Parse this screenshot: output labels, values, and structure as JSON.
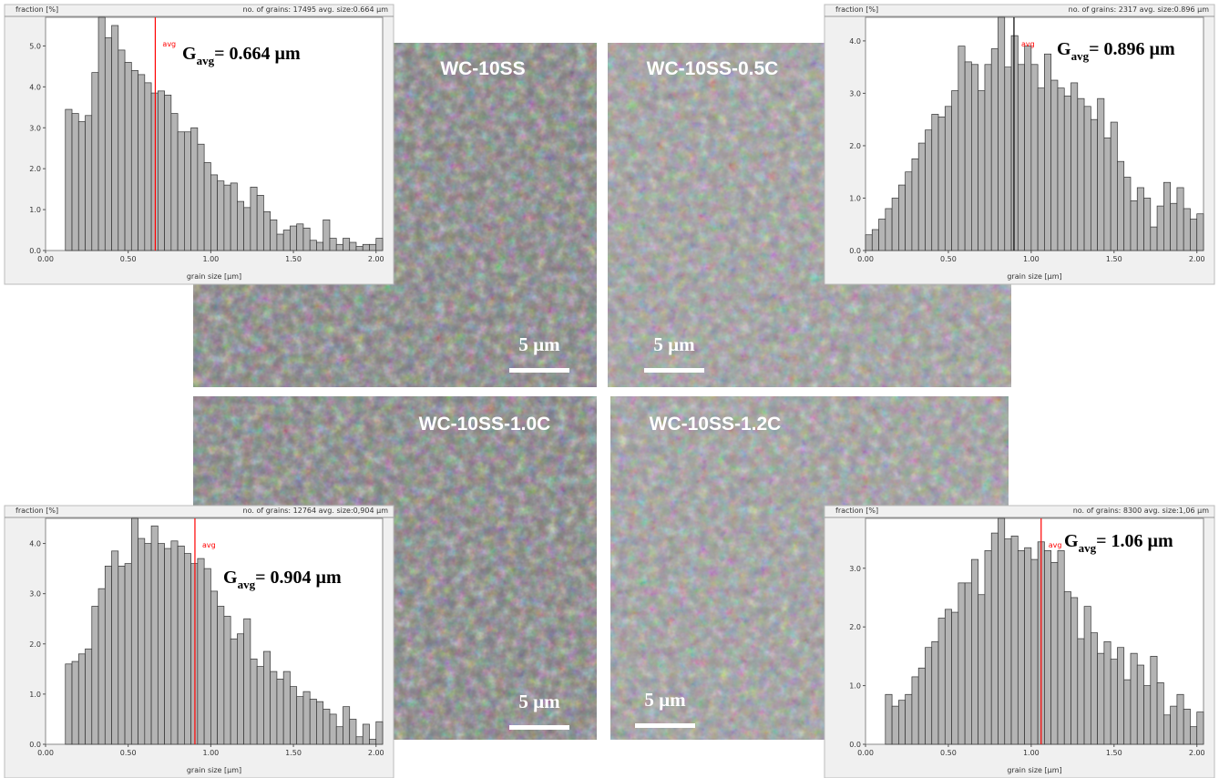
{
  "chart_data": [
    {
      "type": "histogram",
      "y_label": "fraction [%]",
      "info": "no. of grains: 17495  avg. size:0.664 µm",
      "x_label": "grain size [µm]",
      "color": "#b4b4b4",
      "avg_color": "#ff0000",
      "avg_label_color": "#ff0000",
      "avg_label": "avg",
      "avg_value": 0.664,
      "gavg_symbol": "G",
      "gavg_subscript": "avg",
      "gavg_text": "= 0.664 µm",
      "bins": [
        0.12,
        0.16,
        0.2,
        0.24,
        0.28,
        0.32,
        0.36,
        0.4,
        0.44,
        0.48,
        0.52,
        0.56,
        0.6,
        0.64,
        0.68,
        0.72,
        0.76,
        0.8,
        0.84,
        0.88,
        0.92,
        0.96,
        1.0,
        1.04,
        1.08,
        1.12,
        1.16,
        1.2,
        1.24,
        1.28,
        1.32,
        1.36,
        1.4,
        1.44,
        1.48,
        1.52,
        1.56,
        1.6,
        1.64,
        1.68,
        1.72,
        1.76,
        1.8,
        1.84,
        1.88,
        1.92,
        1.96,
        2.0,
        2.04
      ],
      "values": [
        3.45,
        3.35,
        3.15,
        3.3,
        4.35,
        5.7,
        5.2,
        5.5,
        4.9,
        4.6,
        4.4,
        4.3,
        4.1,
        3.85,
        3.9,
        3.8,
        3.35,
        2.9,
        2.9,
        3.0,
        2.6,
        2.15,
        1.85,
        1.7,
        1.6,
        1.65,
        1.2,
        1.05,
        1.55,
        1.35,
        0.95,
        0.75,
        0.4,
        0.5,
        0.6,
        0.65,
        0.55,
        0.25,
        0.2,
        0.75,
        0.3,
        0.15,
        0.3,
        0.2,
        0.1,
        0.15,
        0.15,
        0.3
      ],
      "xlim": [
        0,
        2.04
      ],
      "ylim": [
        0,
        5.7
      ],
      "xticks": [
        {
          "value": 0,
          "label": "0.00"
        },
        {
          "value": 0.5,
          "label": "0.50"
        },
        {
          "value": 1,
          "label": "1.00"
        },
        {
          "value": 1.5,
          "label": "1.50"
        },
        {
          "value": 2,
          "label": "2.00"
        }
      ],
      "yticks": [
        {
          "value": 0,
          "label": "0.0"
        },
        {
          "value": 1,
          "label": "1.0"
        },
        {
          "value": 2,
          "label": "2.0"
        },
        {
          "value": 3,
          "label": "3.0"
        },
        {
          "value": 4,
          "label": "4.0"
        },
        {
          "value": 5,
          "label": "5.0"
        }
      ]
    },
    {
      "type": "histogram",
      "y_label": "fraction [%]",
      "info": "no. of grains: 2317  avg. size:0.896 µm",
      "x_label": "grain size [µm]",
      "color": "#b4b4b4",
      "avg_color": "#000000",
      "avg_label_color": "#ff0000",
      "avg_label": "avg",
      "avg_value": 0.896,
      "gavg_symbol": "G",
      "gavg_subscript": "avg",
      "gavg_text": "= 0.896 µm",
      "bins": [
        0,
        0.04,
        0.08,
        0.12,
        0.16,
        0.2,
        0.24,
        0.28,
        0.32,
        0.36,
        0.4,
        0.44,
        0.48,
        0.52,
        0.56,
        0.6,
        0.64,
        0.68,
        0.72,
        0.76,
        0.8,
        0.84,
        0.88,
        0.92,
        0.96,
        1.0,
        1.04,
        1.08,
        1.12,
        1.16,
        1.2,
        1.24,
        1.28,
        1.32,
        1.36,
        1.4,
        1.44,
        1.48,
        1.52,
        1.56,
        1.6,
        1.64,
        1.68,
        1.72,
        1.76,
        1.8,
        1.84,
        1.88,
        1.92,
        1.96,
        2.0,
        2.04
      ],
      "values": [
        0.3,
        0.4,
        0.6,
        0.8,
        1.0,
        1.25,
        1.5,
        1.75,
        2.05,
        2.3,
        2.6,
        2.55,
        2.75,
        3.05,
        3.9,
        3.6,
        3.55,
        3.05,
        3.55,
        3.85,
        4.45,
        3.5,
        4.1,
        3.55,
        3.9,
        3.55,
        3.1,
        3.75,
        3.25,
        3.1,
        2.95,
        3.2,
        2.9,
        2.75,
        2.5,
        2.9,
        2.15,
        2.45,
        1.7,
        1.4,
        0.95,
        1.2,
        1.0,
        0.45,
        0.85,
        1.3,
        0.9,
        1.2,
        0.8,
        0.6,
        0.7
      ],
      "xlim": [
        0,
        2.04
      ],
      "ylim": [
        0,
        4.45
      ],
      "xticks": [
        {
          "value": 0,
          "label": "0.00"
        },
        {
          "value": 0.5,
          "label": "0.50"
        },
        {
          "value": 1,
          "label": "1.00"
        },
        {
          "value": 1.5,
          "label": "1.50"
        },
        {
          "value": 2,
          "label": "2.00"
        }
      ],
      "yticks": [
        {
          "value": 0,
          "label": "0.0"
        },
        {
          "value": 1,
          "label": "1.0"
        },
        {
          "value": 2,
          "label": "2.0"
        },
        {
          "value": 3,
          "label": "3.0"
        },
        {
          "value": 4,
          "label": "4.0"
        }
      ]
    },
    {
      "type": "histogram",
      "y_label": "fraction [%]",
      "info": "no. of grains: 12764  avg. size:0,904 µm",
      "x_label": "grain size [µm]",
      "color": "#b4b4b4",
      "avg_color": "#ff0000",
      "avg_label_color": "#ff0000",
      "avg_label": "avg",
      "avg_value": 0.904,
      "gavg_symbol": "G",
      "gavg_subscript": "avg",
      "gavg_text": "= 0.904 µm",
      "bins": [
        0.12,
        0.16,
        0.2,
        0.24,
        0.28,
        0.32,
        0.36,
        0.4,
        0.44,
        0.48,
        0.52,
        0.56,
        0.6,
        0.64,
        0.68,
        0.72,
        0.76,
        0.8,
        0.84,
        0.88,
        0.92,
        0.96,
        1.0,
        1.04,
        1.08,
        1.12,
        1.16,
        1.2,
        1.24,
        1.28,
        1.32,
        1.36,
        1.4,
        1.44,
        1.48,
        1.52,
        1.56,
        1.6,
        1.64,
        1.68,
        1.72,
        1.76,
        1.8,
        1.84,
        1.88,
        1.92,
        1.96,
        2.0,
        2.04
      ],
      "values": [
        1.6,
        1.65,
        1.8,
        1.9,
        2.75,
        3.1,
        3.55,
        3.85,
        3.55,
        3.6,
        4.5,
        4.1,
        4.0,
        4.35,
        4.0,
        3.9,
        4.05,
        3.95,
        3.8,
        3.6,
        3.7,
        3.5,
        3.05,
        2.75,
        2.55,
        2.1,
        2.2,
        2.5,
        1.7,
        1.55,
        1.85,
        1.45,
        1.3,
        1.45,
        1.15,
        0.95,
        1.05,
        0.9,
        0.85,
        0.7,
        0.6,
        0.35,
        0.75,
        0.5,
        0.15,
        0.4,
        0.1,
        0.45
      ],
      "xlim": [
        0,
        2.04
      ],
      "ylim": [
        0,
        4.5
      ],
      "xticks": [
        {
          "value": 0,
          "label": "0.00"
        },
        {
          "value": 0.5,
          "label": "0.50"
        },
        {
          "value": 1,
          "label": "1.00"
        },
        {
          "value": 1.5,
          "label": "1.50"
        },
        {
          "value": 2,
          "label": "2.00"
        }
      ],
      "yticks": [
        {
          "value": 0,
          "label": "0.0"
        },
        {
          "value": 1,
          "label": "1.0"
        },
        {
          "value": 2,
          "label": "2.0"
        },
        {
          "value": 3,
          "label": "3.0"
        },
        {
          "value": 4,
          "label": "4.0"
        }
      ]
    },
    {
      "type": "histogram",
      "y_label": "fraction [%]",
      "info": "no. of grains: 8300  avg. size:1,06 µm",
      "x_label": "grain size [µm]",
      "color": "#b4b4b4",
      "avg_color": "#ff0000",
      "avg_label_color": "#ff0000",
      "avg_label": "avg",
      "avg_value": 1.06,
      "gavg_symbol": "G",
      "gavg_subscript": "avg",
      "gavg_text": "= 1.06 µm",
      "bins": [
        0.12,
        0.16,
        0.2,
        0.24,
        0.28,
        0.32,
        0.36,
        0.4,
        0.44,
        0.48,
        0.52,
        0.56,
        0.6,
        0.64,
        0.68,
        0.72,
        0.76,
        0.8,
        0.84,
        0.88,
        0.92,
        0.96,
        1.0,
        1.04,
        1.08,
        1.12,
        1.16,
        1.2,
        1.24,
        1.28,
        1.32,
        1.36,
        1.4,
        1.44,
        1.48,
        1.52,
        1.56,
        1.6,
        1.64,
        1.68,
        1.72,
        1.76,
        1.8,
        1.84,
        1.88,
        1.92,
        1.96,
        2.0,
        2.04
      ],
      "values": [
        0.85,
        0.65,
        0.75,
        0.85,
        1.15,
        1.3,
        1.65,
        1.75,
        2.15,
        2.3,
        2.25,
        2.75,
        2.75,
        3.15,
        2.55,
        3.3,
        3.6,
        3.85,
        3.5,
        3.55,
        3.3,
        3.35,
        3.15,
        3.45,
        3.3,
        3.1,
        3.3,
        2.6,
        2.5,
        1.8,
        2.35,
        1.9,
        1.55,
        1.75,
        1.45,
        1.65,
        1.1,
        1.55,
        1.35,
        1.0,
        1.5,
        1.05,
        0.5,
        0.65,
        0.85,
        0.6,
        0.3,
        0.55
      ],
      "xlim": [
        0,
        2.04
      ],
      "ylim": [
        0,
        3.85
      ],
      "xticks": [
        {
          "value": 0,
          "label": "0.00"
        },
        {
          "value": 0.5,
          "label": "0.50"
        },
        {
          "value": 1,
          "label": "1.00"
        },
        {
          "value": 1.5,
          "label": "1.50"
        },
        {
          "value": 2,
          "label": "2.00"
        }
      ],
      "yticks": [
        {
          "value": 0,
          "label": "0.0"
        },
        {
          "value": 1,
          "label": "1.0"
        },
        {
          "value": 2,
          "label": "2.0"
        },
        {
          "value": 3,
          "label": "3.0"
        }
      ]
    }
  ],
  "micrographs": [
    {
      "label": "WC-10SS",
      "scale_bar": "5 µm"
    },
    {
      "label": "WC-10SS-0.5C",
      "scale_bar": "5 µm"
    },
    {
      "label": "WC-10SS-1.0C",
      "scale_bar": "5 µm"
    },
    {
      "label": "WC-10SS-1.2C",
      "scale_bar": "5 µm"
    }
  ]
}
